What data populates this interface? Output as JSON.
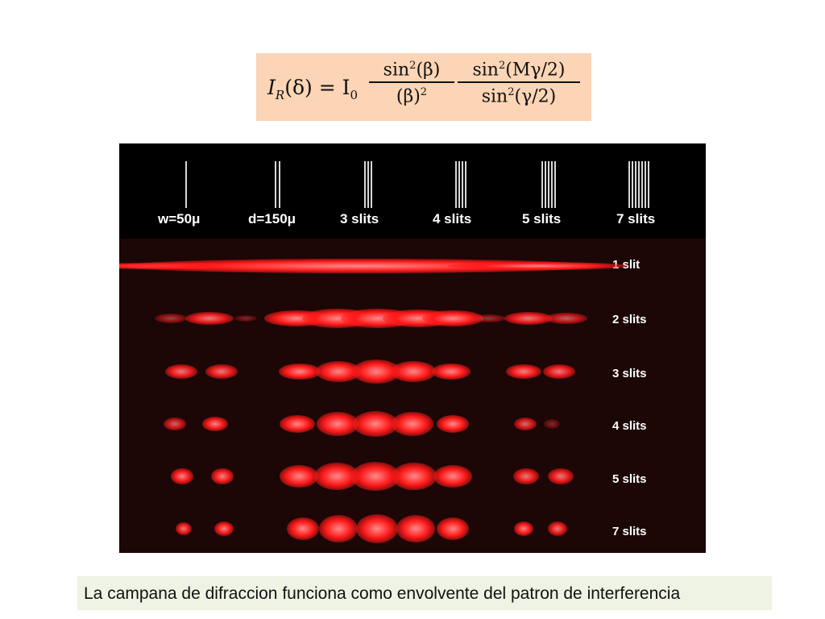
{
  "formula": {
    "lhs_i": "I",
    "lhs_sub": "R",
    "lhs_arg": "(δ) = I",
    "lhs_sub0": "0",
    "frac1_num_a": "sin",
    "frac1_num_sup": "2",
    "frac1_num_b": "(β)",
    "frac1_den_a": "(β)",
    "frac1_den_sup": "2",
    "frac2_num_a": "sin",
    "frac2_num_sup": "2",
    "frac2_num_b": "(Mγ/2)",
    "frac2_den_a": "sin",
    "frac2_den_sup": "2",
    "frac2_den_b": "(γ/2)"
  },
  "figure": {
    "top_labels": [
      "w=50μ",
      "d=150μ",
      "3 slits",
      "4 slits",
      "5 slits",
      "7 slits"
    ],
    "slit_counts": [
      1,
      2,
      3,
      4,
      5,
      7
    ],
    "row_labels": [
      "1 slit",
      "2 slits",
      "3 slits",
      "4 slits",
      "5 slits",
      "7 slits"
    ],
    "spot_color": "#ff1a1a",
    "highlight_color": "#ff8a8a"
  },
  "caption": {
    "text": "La campana de difraccion funciona como envolvente del patron de interferencia",
    "background": "#eef3e3"
  }
}
